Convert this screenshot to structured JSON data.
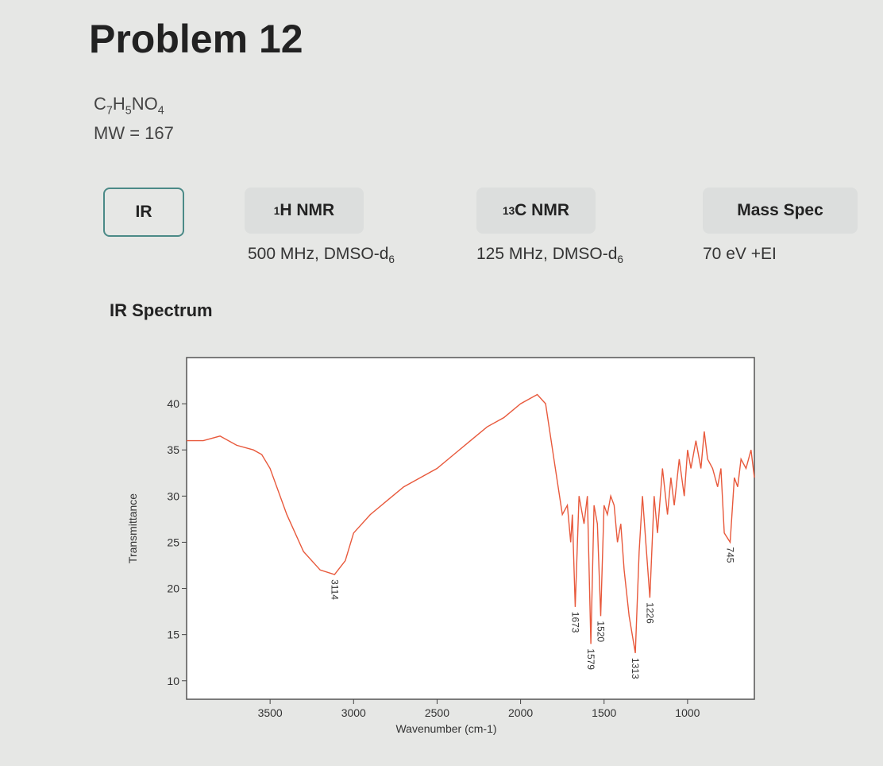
{
  "header": {
    "title": "Problem 12",
    "formula": [
      "C",
      "7",
      "H",
      "5",
      "NO",
      "4"
    ],
    "mw": "MW = 167"
  },
  "tabs": [
    {
      "label": "IR"
    },
    {
      "sup": "1",
      "label": "H NMR",
      "note": "500 MHz, DMSO-d",
      "note_sub": "6"
    },
    {
      "sup": "13",
      "label": "C NMR",
      "note": "125 MHz, DMSO-d",
      "note_sub": "6"
    },
    {
      "label": "Mass Spec",
      "note": "70 eV +EI"
    }
  ],
  "section": "IR Spectrum",
  "chart_data": {
    "type": "line",
    "xlabel": "Wavenumber (cm-1)",
    "ylabel": "Transmittance",
    "color": "#e8593c",
    "xlim": [
      4000,
      600
    ],
    "ylim": [
      8,
      45
    ],
    "xticks": [
      3500,
      3000,
      2500,
      2000,
      1500,
      1000
    ],
    "yticks": [
      10,
      15,
      20,
      25,
      30,
      35,
      40
    ],
    "x": [
      4000,
      3900,
      3800,
      3700,
      3600,
      3550,
      3500,
      3400,
      3300,
      3200,
      3114,
      3050,
      3000,
      2900,
      2800,
      2700,
      2600,
      2500,
      2400,
      2300,
      2200,
      2100,
      2000,
      1900,
      1850,
      1800,
      1750,
      1720,
      1700,
      1690,
      1673,
      1650,
      1620,
      1600,
      1579,
      1560,
      1540,
      1520,
      1500,
      1480,
      1460,
      1440,
      1420,
      1400,
      1380,
      1350,
      1313,
      1290,
      1270,
      1250,
      1226,
      1200,
      1180,
      1150,
      1120,
      1100,
      1080,
      1050,
      1020,
      1000,
      980,
      950,
      920,
      900,
      880,
      850,
      820,
      800,
      780,
      745,
      720,
      700,
      680,
      650,
      620,
      600
    ],
    "values": [
      36,
      36,
      36.5,
      35.5,
      35,
      34.5,
      33,
      28,
      24,
      22,
      21.5,
      23,
      26,
      28,
      29.5,
      31,
      32,
      33,
      34.5,
      36,
      37.5,
      38.5,
      40,
      41,
      40,
      34,
      28,
      29,
      25,
      28,
      18,
      30,
      27,
      30,
      14,
      29,
      27,
      17,
      29,
      28,
      30,
      29,
      25,
      27,
      22,
      17,
      13,
      24,
      30,
      25,
      19,
      30,
      26,
      33,
      28,
      32,
      29,
      34,
      30,
      35,
      33,
      36,
      33,
      37,
      34,
      33,
      31,
      33,
      26,
      25,
      32,
      31,
      34,
      33,
      35,
      32
    ],
    "peaks": [
      3114,
      1673,
      1579,
      1520,
      1313,
      1226,
      745
    ]
  }
}
